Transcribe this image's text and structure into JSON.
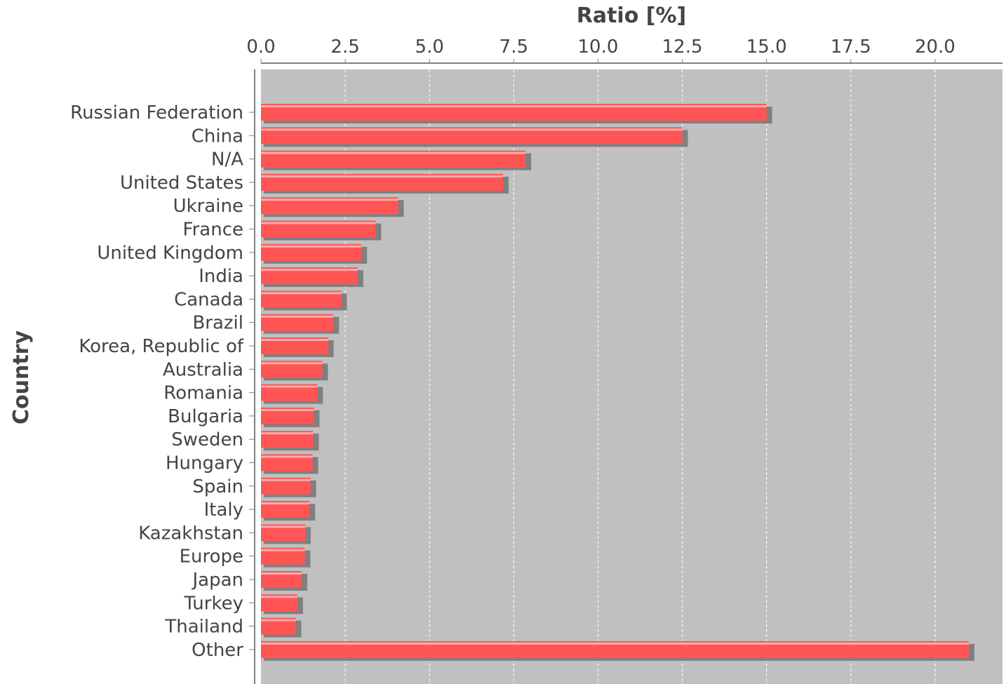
{
  "chart_data": {
    "type": "bar",
    "orientation": "horizontal",
    "title": "",
    "xlabel": "Ratio [%]",
    "ylabel": "Country",
    "xlim": [
      0,
      22
    ],
    "x_ticks": [
      "0.0",
      "2.5",
      "5.0",
      "7.5",
      "10.0",
      "12.5",
      "15.0",
      "17.5",
      "20.0"
    ],
    "x_tick_values": [
      0,
      2.5,
      5,
      7.5,
      10,
      12.5,
      15,
      17.5,
      20
    ],
    "grid": true,
    "x_axis_position": "top",
    "categories": [
      "Russian Federation",
      "China",
      "N/A",
      "United States",
      "Ukraine",
      "France",
      "United Kingdom",
      "India",
      "Canada",
      "Brazil",
      "Korea, Republic of",
      "Australia",
      "Romania",
      "Bulgaria",
      "Sweden",
      "Hungary",
      "Spain",
      "Italy",
      "Kazakhstan",
      "Europe",
      "Japan",
      "Turkey",
      "Thailand",
      "Other"
    ],
    "values": [
      15.0,
      12.5,
      7.85,
      7.18,
      4.07,
      3.4,
      2.98,
      2.87,
      2.38,
      2.15,
      1.99,
      1.82,
      1.67,
      1.57,
      1.55,
      1.53,
      1.47,
      1.44,
      1.31,
      1.3,
      1.21,
      1.08,
      1.03,
      21.0
    ],
    "colors": {
      "bar": "#ff5555",
      "bar_highlight": "#ffaaaa",
      "bar_shadow": "#808080",
      "plot_background": "#c0c0c0",
      "gridline": "#ffffff",
      "axis": "#808080"
    }
  }
}
